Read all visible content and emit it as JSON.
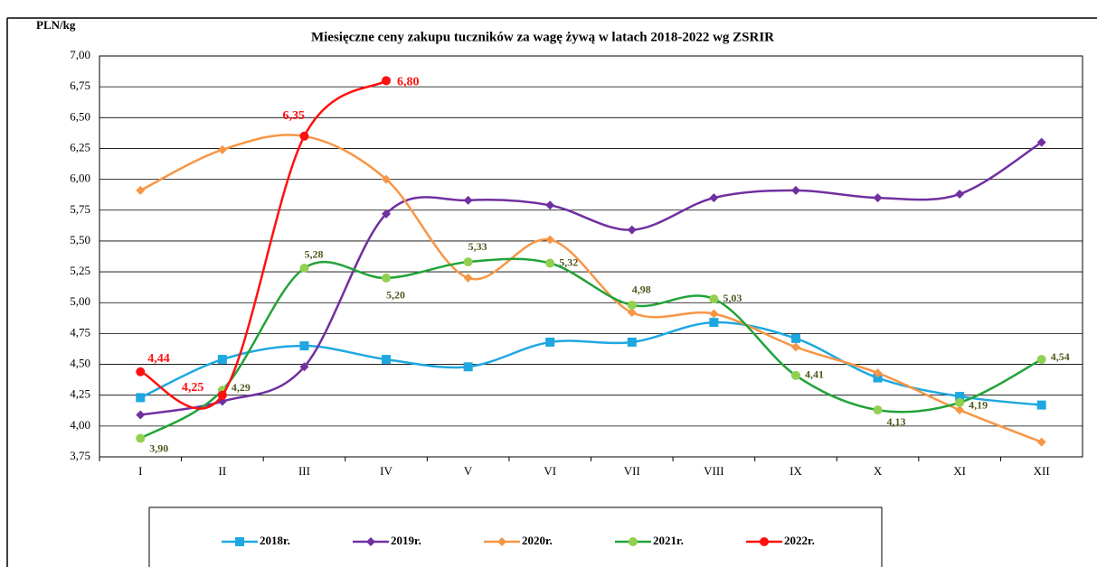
{
  "chart_data": {
    "type": "line",
    "title": "Miesięczne ceny zakupu tuczników za wagę żywą w latach 2018-2022 wg ZSRIR",
    "y_label": "PLN/kg",
    "categories": [
      "I",
      "II",
      "III",
      "IV",
      "V",
      "VI",
      "VII",
      "VIII",
      "IX",
      "X",
      "XI",
      "XII"
    ],
    "ylim": [
      3.75,
      7.0
    ],
    "yticks": [
      {
        "value": 3.75,
        "label": "3,75"
      },
      {
        "value": 4.0,
        "label": "4,00"
      },
      {
        "value": 4.25,
        "label": "4,25"
      },
      {
        "value": 4.5,
        "label": "4,50"
      },
      {
        "value": 4.75,
        "label": "4,75"
      },
      {
        "value": 5.0,
        "label": "5,00"
      },
      {
        "value": 5.25,
        "label": "5,25"
      },
      {
        "value": 5.5,
        "label": "5,50"
      },
      {
        "value": 5.75,
        "label": "5,75"
      },
      {
        "value": 6.0,
        "label": "6,00"
      },
      {
        "value": 6.25,
        "label": "6,25"
      },
      {
        "value": 6.5,
        "label": "6,50"
      },
      {
        "value": 6.75,
        "label": "6,75"
      },
      {
        "value": 7.0,
        "label": "7,00"
      }
    ],
    "grid": true,
    "legend": "bottom",
    "series": [
      {
        "name": "2018r.",
        "color": "#1fa8e0",
        "marker": "square",
        "values": [
          4.23,
          4.54,
          4.65,
          4.54,
          4.48,
          4.68,
          4.68,
          4.84,
          4.71,
          4.39,
          4.24,
          4.17
        ]
      },
      {
        "name": "2019r.",
        "color": "#7030a0",
        "marker": "diamond",
        "values": [
          4.09,
          4.2,
          4.48,
          5.72,
          5.83,
          5.79,
          5.59,
          5.85,
          5.91,
          5.85,
          5.88,
          6.3
        ]
      },
      {
        "name": "2020r.",
        "color": "#f79646",
        "marker": "diamond",
        "values": [
          5.91,
          6.24,
          6.35,
          6.0,
          5.2,
          5.51,
          4.92,
          4.91,
          4.64,
          4.43,
          4.13,
          3.87
        ]
      },
      {
        "name": "2021r.",
        "color": "#22a33a",
        "marker": "circle",
        "marker_color": "#92d050",
        "values": [
          3.9,
          4.29,
          5.28,
          5.2,
          5.33,
          5.32,
          4.98,
          5.03,
          4.41,
          4.13,
          4.19,
          4.54
        ],
        "value_labels": [
          "3,90",
          "4,29",
          "5,28",
          "5,20",
          "5,33",
          "5,32",
          "4,98",
          "5,03",
          "4,41",
          "4,13",
          "4,19",
          "4,54"
        ],
        "label_color": "#4f5a1e"
      },
      {
        "name": "2022r.",
        "color": "#ff1010",
        "marker": "circle",
        "values": [
          4.44,
          4.25,
          6.35,
          6.8,
          null,
          null,
          null,
          null,
          null,
          null,
          null,
          null
        ],
        "value_labels": [
          "4,44",
          "4,25",
          "6,35",
          "6,80",
          null,
          null,
          null,
          null,
          null,
          null,
          null,
          null
        ],
        "label_color": "#ff1010"
      }
    ]
  }
}
